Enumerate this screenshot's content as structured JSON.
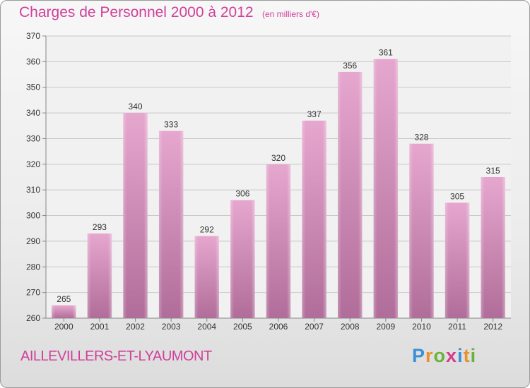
{
  "header": {
    "title": "Charges de Personnel 2000 à 2012",
    "subtitle": "(en milliers d'€)"
  },
  "footer": {
    "commune": "AILLEVILLERS-ET-LYAUMONT",
    "logo_letters": [
      "P",
      "r",
      "o",
      "x",
      "i",
      "t",
      "i"
    ],
    "logo_colors": [
      "#3b8fd6",
      "#e8912d",
      "#6ab33a",
      "#d63b8f",
      "#3b8fd6",
      "#e8912d",
      "#6ab33a"
    ]
  },
  "chart_data": {
    "type": "bar",
    "title": "Charges de Personnel 2000 à 2012",
    "subtitle": "(en milliers d'€)",
    "categories": [
      "2000",
      "2001",
      "2002",
      "2003",
      "2004",
      "2005",
      "2006",
      "2007",
      "2008",
      "2009",
      "2010",
      "2011",
      "2012"
    ],
    "values": [
      265,
      293,
      340,
      333,
      292,
      306,
      320,
      337,
      356,
      361,
      328,
      305,
      315
    ],
    "ylim": [
      260,
      370
    ],
    "yticks": [
      260,
      270,
      280,
      290,
      300,
      310,
      320,
      330,
      340,
      350,
      360,
      370
    ],
    "grid": true,
    "bar_color": "#cc77aa",
    "xlabel": "",
    "ylabel": ""
  }
}
